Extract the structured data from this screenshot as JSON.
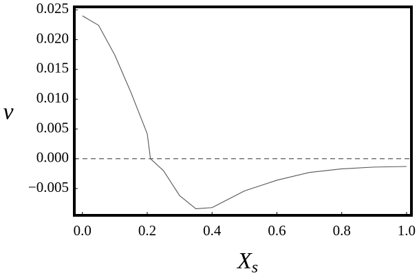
{
  "chart_data": {
    "type": "line",
    "x_label": {
      "text": "X",
      "subscript": "s"
    },
    "y_label": "v",
    "x": [
      0,
      0.05,
      0.1,
      0.15,
      0.2,
      0.21,
      0.25,
      0.3,
      0.35,
      0.4,
      0.45,
      0.5,
      0.6,
      0.7,
      0.8,
      0.9,
      1.0
    ],
    "series": [
      {
        "color": "#555555",
        "values": [
          0.024,
          0.0224,
          0.0174,
          0.0111,
          0.0042,
          0.0,
          -0.002,
          -0.0062,
          -0.0084,
          -0.0082,
          -0.0068,
          -0.0054,
          -0.0036,
          -0.0023,
          -0.0017,
          -0.0014,
          -0.0013
        ]
      }
    ],
    "xlim": [
      -0.025,
      1.015
    ],
    "ylim": [
      -0.0095,
      0.0255
    ],
    "xticks": [
      {
        "value": 0,
        "label": "0.0"
      },
      0.2,
      0.4,
      0.6,
      0.8,
      {
        "value": 1,
        "label": "1.0"
      }
    ],
    "yticks": [
      {
        "value": -0.005,
        "label": "−0.005"
      },
      {
        "value": 0,
        "label": "0.000"
      },
      0.005,
      {
        "value": 0.01,
        "label": "0.010"
      },
      0.015,
      {
        "value": 0.02,
        "label": "0.020"
      },
      0.025
    ],
    "reference_line": {
      "y": 0,
      "dashed": true,
      "color": "#333333"
    },
    "grid": false
  }
}
